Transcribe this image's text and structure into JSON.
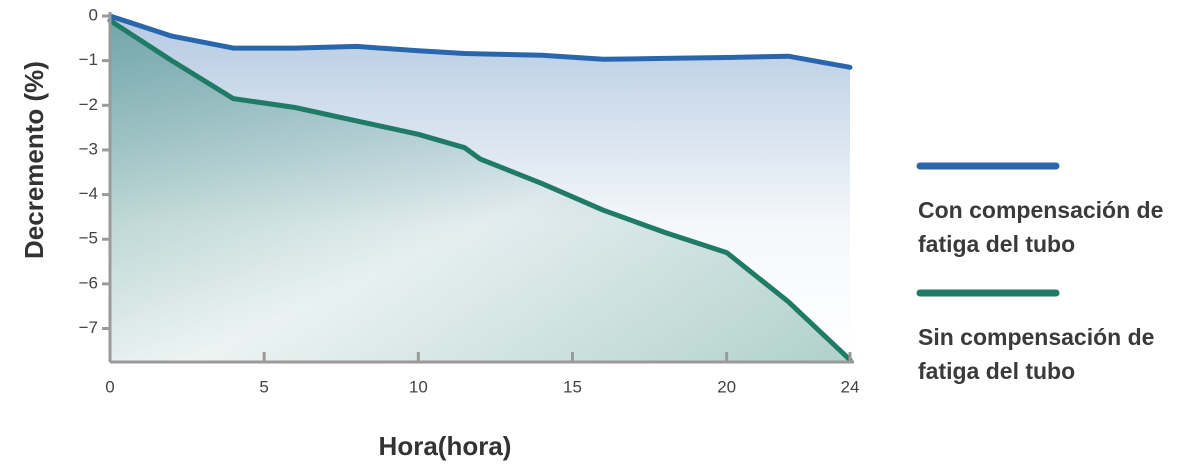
{
  "chart_data": {
    "type": "line",
    "x_label": "Hora(hora)",
    "y_label": "Decremento (%)",
    "x": [
      0,
      2,
      4,
      6,
      8,
      10,
      11.5,
      12,
      14,
      16,
      18,
      20,
      22,
      24
    ],
    "series": [
      {
        "name": "Con compensación de fatiga del tubo",
        "color": "#2a66ab",
        "values": [
          0,
          -0.45,
          -0.72,
          -0.72,
          -0.68,
          -0.78,
          -0.84,
          -0.85,
          -0.88,
          -0.97,
          -0.95,
          -0.93,
          -0.9,
          -1.15
        ]
      },
      {
        "name": "Sin compensación de fatiga del tubo",
        "color": "#1f7a66",
        "values": [
          -0.1,
          -1.0,
          -1.85,
          -2.05,
          -2.35,
          -2.65,
          -2.95,
          -3.2,
          -3.75,
          -4.35,
          -4.85,
          -5.3,
          -6.4,
          -7.7
        ]
      }
    ],
    "xlim": [
      0,
      24
    ],
    "ylim": [
      -7.75,
      0
    ],
    "xticks": [
      0,
      5,
      10,
      15,
      20,
      24
    ],
    "yticks": [
      0,
      {
        "value": -1,
        "label": "−1"
      },
      {
        "value": -2,
        "label": "−2"
      },
      {
        "value": -3,
        "label": "−3"
      },
      {
        "value": -4,
        "label": "−4"
      },
      {
        "value": -5,
        "label": "−5"
      },
      {
        "value": -6,
        "label": "−6"
      },
      {
        "value": -7,
        "label": "−7"
      }
    ],
    "grid": false,
    "legend": "right"
  }
}
